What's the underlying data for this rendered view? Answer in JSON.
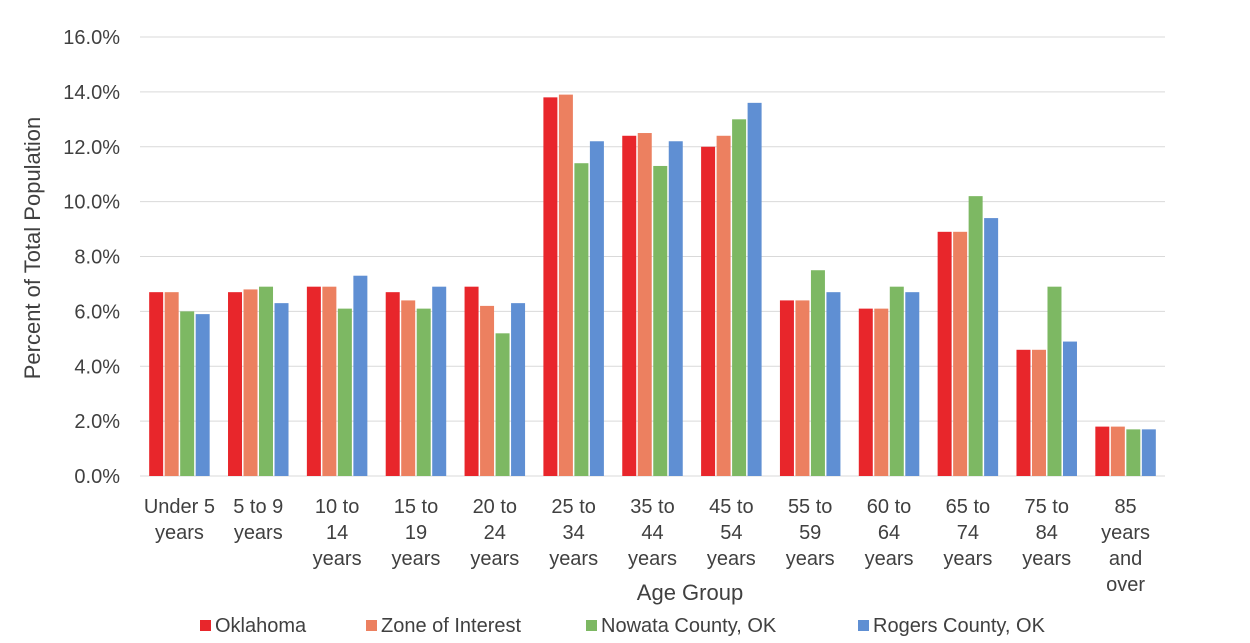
{
  "chart_data": {
    "type": "bar",
    "title": "",
    "xlabel": "Age Group",
    "ylabel": "Percent of Total Population",
    "ylim": [
      0,
      16
    ],
    "y_ticks": [
      "0.0%",
      "2.0%",
      "4.0%",
      "6.0%",
      "8.0%",
      "10.0%",
      "12.0%",
      "14.0%",
      "16.0%"
    ],
    "grid": true,
    "legend_position": "bottom",
    "categories": [
      [
        "Under 5",
        "years"
      ],
      [
        "5 to 9",
        "years"
      ],
      [
        "10 to",
        "14",
        "years"
      ],
      [
        "15 to",
        "19",
        "years"
      ],
      [
        "20 to",
        "24",
        "years"
      ],
      [
        "25 to",
        "34",
        "years"
      ],
      [
        "35 to",
        "44",
        "years"
      ],
      [
        "45 to",
        "54",
        "years"
      ],
      [
        "55 to",
        "59",
        "years"
      ],
      [
        "60 to",
        "64",
        "years"
      ],
      [
        "65 to",
        "74",
        "years"
      ],
      [
        "75 to",
        "84",
        "years"
      ],
      [
        "85",
        "years",
        "and",
        "over"
      ]
    ],
    "series": [
      {
        "name": "Oklahoma",
        "color": "#e8262b",
        "values": [
          6.7,
          6.7,
          6.9,
          6.7,
          6.9,
          13.8,
          12.4,
          12.0,
          6.4,
          6.1,
          8.9,
          4.6,
          1.8
        ]
      },
      {
        "name": "Zone of Interest",
        "color": "#ec8060",
        "values": [
          6.7,
          6.8,
          6.9,
          6.4,
          6.2,
          13.9,
          12.5,
          12.4,
          6.4,
          6.1,
          8.9,
          4.6,
          1.8
        ]
      },
      {
        "name": "Nowata County, OK",
        "color": "#7db863",
        "values": [
          6.0,
          6.9,
          6.1,
          6.1,
          5.2,
          11.4,
          11.3,
          13.0,
          7.5,
          6.9,
          10.2,
          6.9,
          1.7
        ]
      },
      {
        "name": "Rogers County, OK",
        "color": "#5f8fd3",
        "values": [
          5.9,
          6.3,
          7.3,
          6.9,
          6.3,
          12.2,
          12.2,
          13.6,
          6.7,
          6.7,
          9.4,
          4.9,
          1.7
        ]
      }
    ]
  }
}
